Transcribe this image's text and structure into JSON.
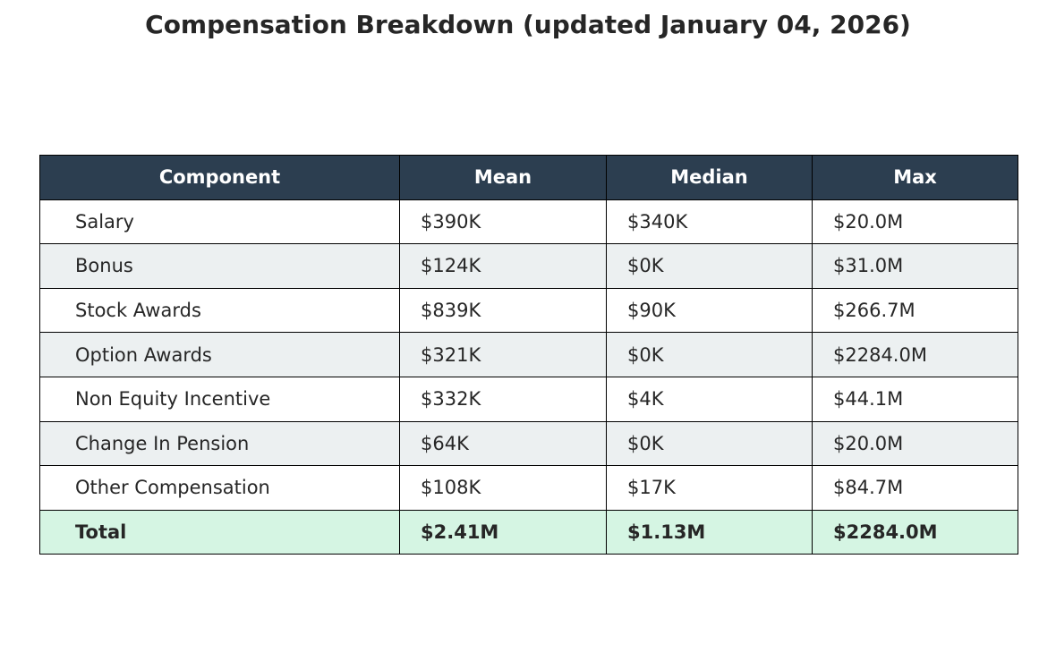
{
  "chart_data": {
    "type": "table",
    "title": "Compensation Breakdown (updated January 04, 2026)",
    "columns": [
      "Component",
      "Mean",
      "Median",
      "Max"
    ],
    "rows": [
      [
        "Salary",
        "$390K",
        "$340K",
        "$20.0M"
      ],
      [
        "Bonus",
        "$124K",
        "$0K",
        "$31.0M"
      ],
      [
        "Stock Awards",
        "$839K",
        "$90K",
        "$266.7M"
      ],
      [
        "Option Awards",
        "$321K",
        "$0K",
        "$2284.0M"
      ],
      [
        "Non Equity Incentive",
        "$332K",
        "$4K",
        "$44.1M"
      ],
      [
        "Change In Pension",
        "$64K",
        "$0K",
        "$20.0M"
      ],
      [
        "Other Compensation",
        "$108K",
        "$17K",
        "$84.7M"
      ]
    ],
    "total_row": [
      "Total",
      "$2.41M",
      "$1.13M",
      "$2284.0M"
    ]
  },
  "colors": {
    "header_bg": "#2c3e50",
    "header_text": "#ffffff",
    "row_odd_bg": "#ffffff",
    "row_even_bg": "#ecf0f1",
    "total_bg": "#d5f5e3",
    "border": "#000000",
    "text": "#262626"
  }
}
